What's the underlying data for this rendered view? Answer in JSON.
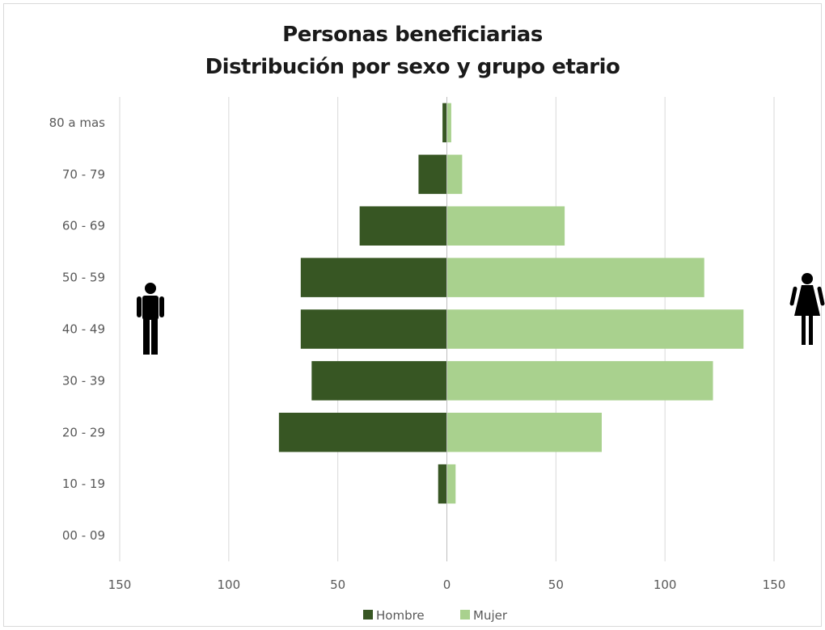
{
  "chart_data": {
    "type": "bar",
    "orientation": "horizontal",
    "title": "Personas beneficiarias",
    "subtitle": "Distribución por sexo y grupo etario",
    "categories": [
      "80 a mas",
      "70 - 79",
      "60 - 69",
      "50 - 59",
      "40 - 49",
      "30 - 39",
      "20 - 29",
      "10 - 19",
      "00 - 09"
    ],
    "series": [
      {
        "name": "Hombre",
        "color": "#375623",
        "values": [
          2,
          13,
          40,
          67,
          67,
          62,
          77,
          4,
          0
        ]
      },
      {
        "name": "Mujer",
        "color": "#a9d18e",
        "values": [
          2,
          7,
          54,
          118,
          136,
          122,
          71,
          4,
          0
        ]
      }
    ],
    "xlim": [
      -150,
      150
    ],
    "xticks": [
      -150,
      -100,
      -50,
      0,
      50,
      100,
      150
    ],
    "xtick_labels": [
      "150",
      "100",
      "50",
      "0",
      "50",
      "100",
      "150"
    ],
    "grid": "vertical",
    "legend": "bottom",
    "icons": {
      "left": "man-icon",
      "right": "woman-icon"
    }
  }
}
